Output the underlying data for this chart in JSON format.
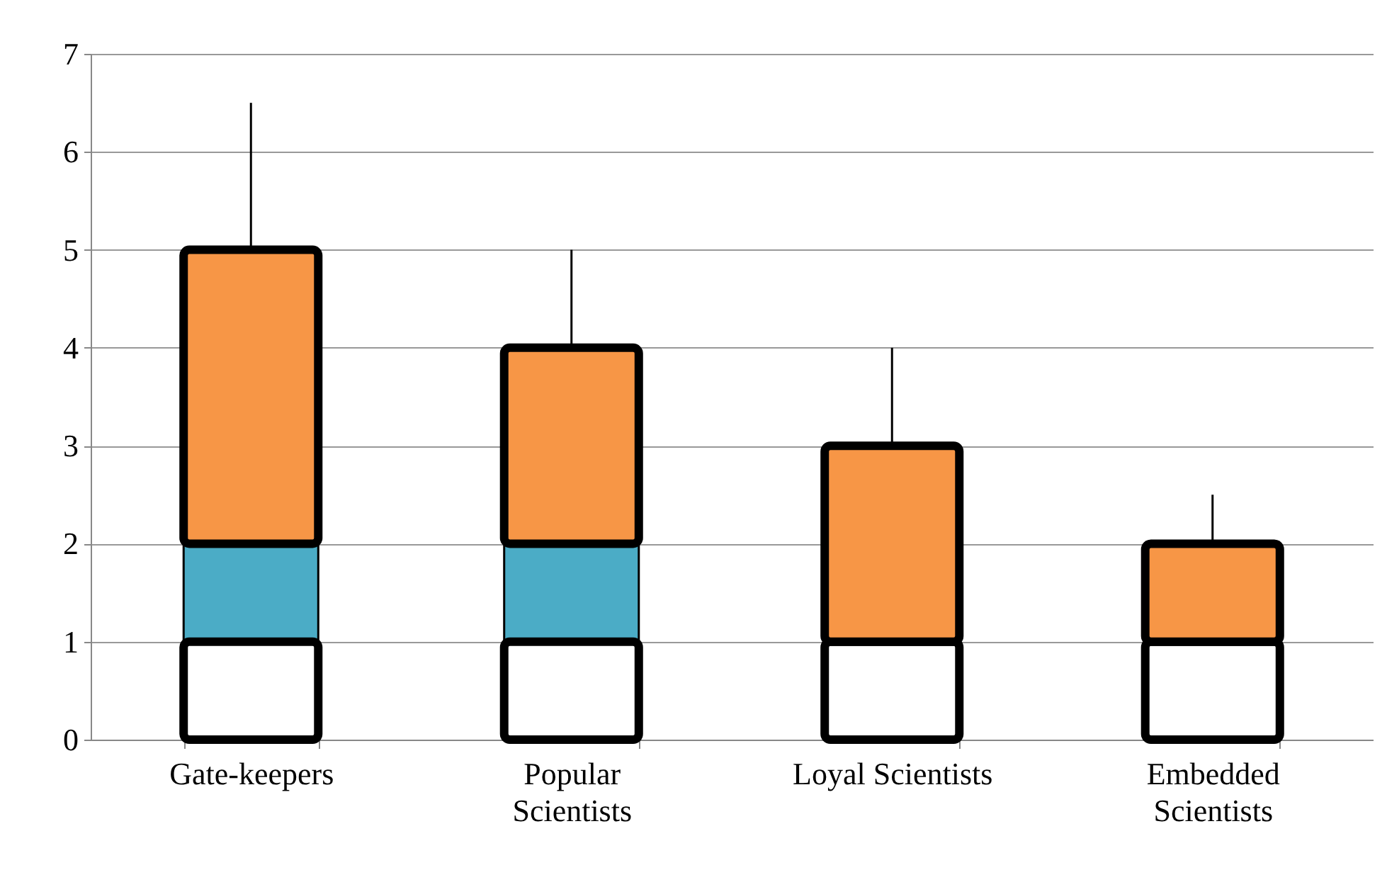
{
  "chart_data": {
    "type": "bar",
    "stacked": true,
    "categories": [
      "Gate-keepers",
      "Popular\nScientists",
      "Loyal Scientists",
      "Embedded\nScientists"
    ],
    "series": [
      {
        "color": "#ffffff",
        "values": [
          1,
          1,
          1,
          1
        ]
      },
      {
        "color": "#4bacc6",
        "values": [
          1,
          1,
          0,
          0
        ]
      },
      {
        "color": "#f79646",
        "values": [
          3,
          2,
          2,
          1
        ],
        "errors": [
          [
            5,
            6.5
          ],
          [
            4,
            5
          ],
          [
            3,
            4
          ],
          [
            2,
            2.5
          ]
        ]
      }
    ],
    "ylim": [
      0,
      7
    ],
    "yticks": [
      0,
      1,
      2,
      3,
      4,
      5,
      6,
      7
    ],
    "grid": "y"
  }
}
